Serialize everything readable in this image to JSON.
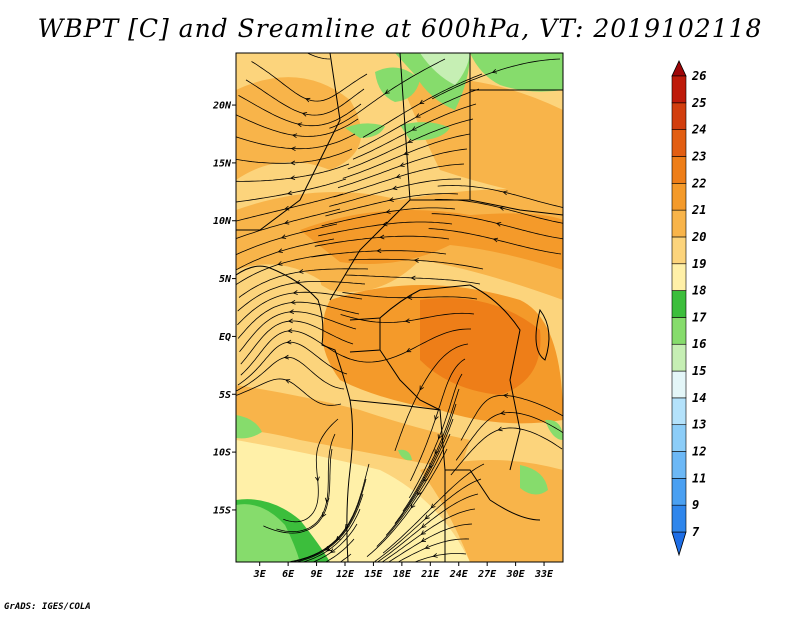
{
  "title": "WBPT [C] and Sreamline at 600hPa, VT: 2019102118",
  "credit": "GrADS: IGES/COLA",
  "map": {
    "lat_labels": [
      "20N",
      "15N",
      "10N",
      "5N",
      "EQ",
      "5S",
      "10S",
      "15S"
    ],
    "lon_labels": [
      "3E",
      "6E",
      "9E",
      "12E",
      "15E",
      "18E",
      "21E",
      "24E",
      "27E",
      "30E",
      "33E"
    ],
    "lon_range": [
      0.5,
      35
    ],
    "lat_range": [
      -19.5,
      24.5
    ]
  },
  "colorbar": {
    "labels": [
      "7",
      "9",
      "11",
      "12",
      "13",
      "14",
      "15",
      "16",
      "17",
      "18",
      "19",
      "20",
      "21",
      "22",
      "23",
      "24",
      "25",
      "26"
    ],
    "colors": [
      "#1e6ee6",
      "#2f86ec",
      "#4aa0f2",
      "#6cb8f6",
      "#8ccdf8",
      "#b4e2fb",
      "#e4f6f8",
      "#c6efb4",
      "#86dc6c",
      "#3cbe3c",
      "#fff0a8",
      "#fcd47c",
      "#f8b44a",
      "#f49a2a",
      "#ee7e18",
      "#e25e12",
      "#d23e0e",
      "#be1a0a",
      "#9e0608"
    ]
  }
}
